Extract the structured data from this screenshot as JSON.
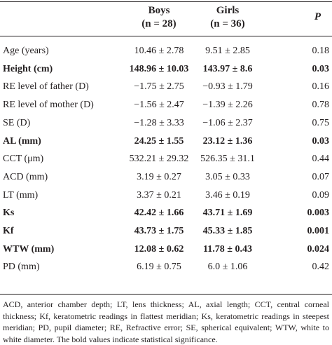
{
  "table": {
    "header": [
      {
        "label": "Boys",
        "n": "(n = 28)"
      },
      {
        "label": "Girls",
        "n": "(n = 36)"
      },
      {
        "label": "P"
      }
    ],
    "rows": [
      {
        "cells": [
          "Age (years)",
          "10.46 ± 2.78",
          "9.51 ± 2.85",
          "0.18"
        ],
        "bold": false
      },
      {
        "cells": [
          "Height (cm)",
          "148.96 ± 10.03",
          "143.97 ± 8.6",
          "0.03"
        ],
        "bold": true
      },
      {
        "cells": [
          "RE level of father (D)",
          "−1.75 ± 2.75",
          "−0.93 ± 1.79",
          "0.16"
        ],
        "bold": false
      },
      {
        "cells": [
          "RE level of mother (D)",
          "−1.56 ± 2.47",
          "−1.39 ± 2.26",
          "0.78"
        ],
        "bold": false
      },
      {
        "cells": [
          "SE (D)",
          "−1.28 ± 3.33",
          "−1.06 ± 2.37",
          "0.75"
        ],
        "bold": false
      },
      {
        "cells": [
          "AL (mm)",
          "24.25 ± 1.55",
          "23.12 ± 1.36",
          "0.03"
        ],
        "bold": true
      },
      {
        "cells": [
          "CCT (μm)",
          "532.21 ± 29.32",
          "526.35 ± 31.1",
          "0.44"
        ],
        "bold": false
      },
      {
        "cells": [
          "ACD (mm)",
          "3.19 ± 0.27",
          "3.05 ± 0.33",
          "0.07"
        ],
        "bold": false
      },
      {
        "cells": [
          "LT (mm)",
          "3.37 ± 0.21",
          "3.46 ± 0.19",
          "0.09"
        ],
        "bold": false
      },
      {
        "cells": [
          "Ks",
          "42.42 ± 1.66",
          "43.71 ± 1.69",
          "0.003"
        ],
        "bold": true
      },
      {
        "cells": [
          "Kf",
          "43.73 ± 1.75",
          "45.33 ± 1.85",
          "0.001"
        ],
        "bold": true
      },
      {
        "cells": [
          "WTW (mm)",
          "12.08 ± 0.62",
          "11.78 ± 0.43",
          "0.024"
        ],
        "bold": true
      },
      {
        "cells": [
          "PD (mm)",
          "6.19 ± 0.75",
          "6.0 ± 1.06",
          "0.42"
        ],
        "bold": false
      }
    ],
    "footnote": "ACD, anterior chamber depth; LT, lens thickness; AL, axial length; CCT, central corneal thickness; Kf, keratometric readings in flattest meridian; Ks, keratometric readings in steepest meridian; PD, pupil diameter; RE, Refractive error; SE, spherical equivalent; WTW, white to white diameter. The bold values indicate statistical significance."
  }
}
